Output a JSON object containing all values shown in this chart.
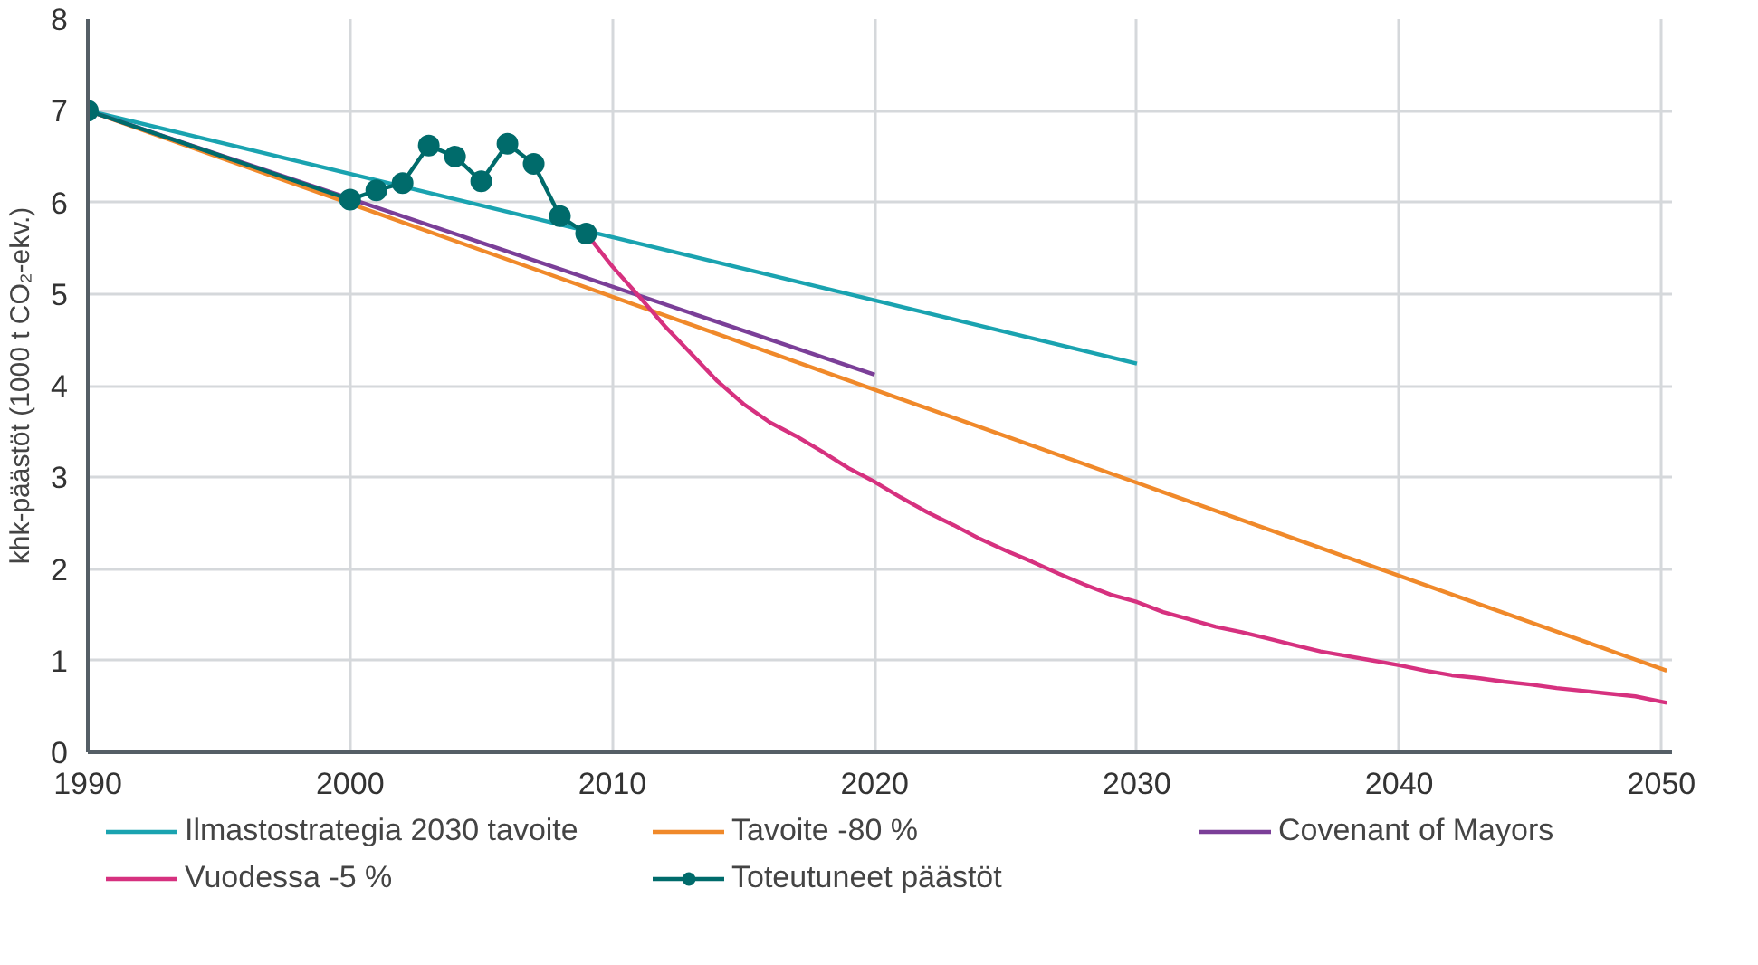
{
  "chart_data": {
    "type": "line",
    "ylabel": "khk-päästöt (1000 t CO₂-ekv.)",
    "xlim": [
      1990,
      2050.4
    ],
    "ylim": [
      0,
      8
    ],
    "xticks": [
      1990,
      2000,
      2010,
      2020,
      2030,
      2040,
      2050
    ],
    "yticks": [
      0,
      1,
      2,
      3,
      4,
      5,
      6,
      7,
      8
    ],
    "grid": true,
    "legend": "bottom",
    "line_style": "solid",
    "series": [
      {
        "name": "Ilmastostrategia 2030 tavoite",
        "color": "#1aa3b0",
        "x": [
          1990,
          2030
        ],
        "values": [
          7.0,
          4.24
        ]
      },
      {
        "name": "Tavoite -80 %",
        "color": "#f0892a",
        "x": [
          1990,
          2050.2
        ],
        "values": [
          7.0,
          0.89
        ]
      },
      {
        "name": "Covenant of Mayors",
        "color": "#7b3f98",
        "x": [
          1990,
          2020
        ],
        "values": [
          7.0,
          4.12
        ]
      },
      {
        "name": "Vuodessa -5 %",
        "color": "#d6317f",
        "x": [
          2009,
          2010,
          2011,
          2012,
          2013,
          2014,
          2015,
          2016,
          2017,
          2018,
          2019,
          2020,
          2021,
          2022,
          2023,
          2024,
          2025,
          2026,
          2027,
          2028,
          2029,
          2030,
          2031,
          2032,
          2033,
          2034,
          2035,
          2036,
          2037,
          2038,
          2039,
          2040,
          2041,
          2042,
          2043,
          2044,
          2045,
          2046,
          2047,
          2048,
          2049,
          2050.2
        ],
        "values": [
          5.66,
          5.3,
          4.98,
          4.65,
          4.35,
          4.05,
          3.8,
          3.6,
          3.45,
          3.28,
          3.1,
          2.95,
          2.78,
          2.62,
          2.48,
          2.33,
          2.2,
          2.08,
          1.95,
          1.83,
          1.72,
          1.64,
          1.53,
          1.45,
          1.37,
          1.31,
          1.24,
          1.17,
          1.1,
          1.05,
          1.0,
          0.95,
          0.89,
          0.84,
          0.81,
          0.77,
          0.74,
          0.7,
          0.67,
          0.64,
          0.61,
          0.54
        ]
      },
      {
        "name": "Toteutuneet päästöt",
        "color": "#006b6b",
        "marker": "circle",
        "x": [
          1990,
          2000,
          2001,
          2002,
          2003,
          2004,
          2005,
          2006,
          2007,
          2008,
          2009
        ],
        "values": [
          7.0,
          6.03,
          6.13,
          6.21,
          6.62,
          6.5,
          6.23,
          6.64,
          6.42,
          5.85,
          5.66
        ]
      }
    ]
  }
}
